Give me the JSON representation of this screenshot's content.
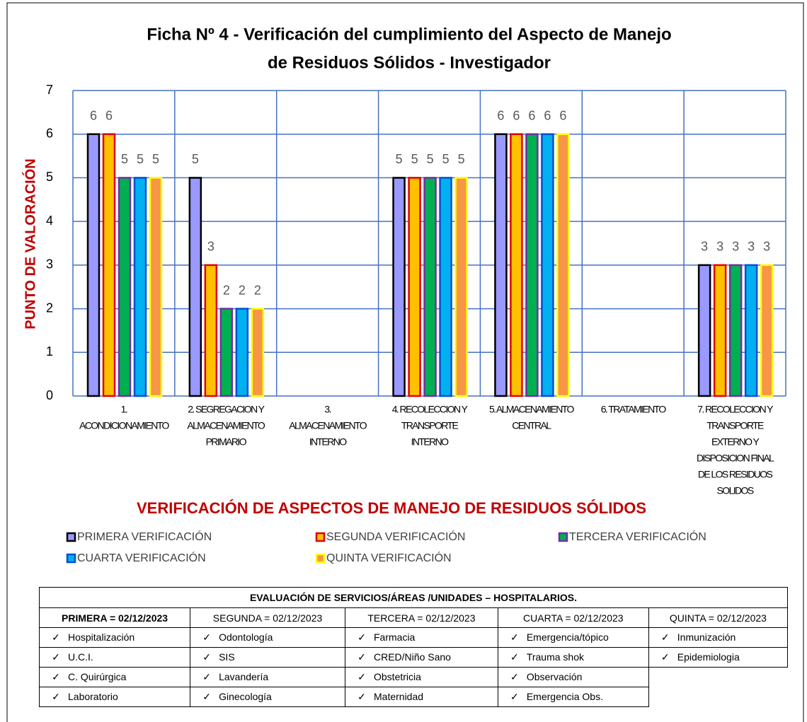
{
  "chart_data": {
    "type": "bar",
    "title": [
      "Ficha Nº 4 - Verificación del cumplimiento del Aspecto de Manejo",
      "de Residuos Sólidos -  Investigador"
    ],
    "y_label": "PUNTO DE VALORACIÓN",
    "x_label": "VERIFICACIÓN DE ASPECTOS DE MANEJO DE RESIDUOS SÓLIDOS",
    "categories": [
      [
        "1.",
        "ACONDICIONAMIENTO"
      ],
      [
        "2. SEGREGACION Y",
        "ALMACENAMIENTO",
        "PRIMARIO"
      ],
      [
        "3.",
        "ALMACENAMIENTO",
        "INTERNO"
      ],
      [
        "4. RECOLECCION Y",
        "TRANSPORTE",
        "INTERNO"
      ],
      [
        "5. ALMACENAMIENTO",
        "CENTRAL"
      ],
      [
        "6. TRATAMIENTO"
      ],
      [
        "7. RECOLECCION Y",
        "TRANSPORTE",
        "EXTERNO Y",
        "DISPOSICION FINAL",
        "DE LOS RESIDUOS",
        "SOLIDOS"
      ]
    ],
    "series": [
      {
        "name": "PRIMERA VERIFICACIÓN",
        "color": "#9999ff",
        "border": "#000000",
        "values": [
          6,
          5,
          null,
          5,
          6,
          null,
          3
        ]
      },
      {
        "name": "SEGUNDA VERIFICACIÓN",
        "color": "#ffc000",
        "border": "#e00000",
        "values": [
          6,
          3,
          null,
          5,
          6,
          null,
          3
        ]
      },
      {
        "name": "TERCERA VERIFICACIÓN",
        "color": "#00b050",
        "border": "#7030a0",
        "values": [
          5,
          2,
          null,
          5,
          6,
          null,
          3
        ]
      },
      {
        "name": "CUARTA VERIFICACIÓN",
        "color": "#00b0f0",
        "border": "#0050d0",
        "values": [
          5,
          2,
          null,
          5,
          6,
          null,
          3
        ]
      },
      {
        "name": "QUINTA VERIFICACIÓN",
        "color": "#f79646",
        "border": "#ffff00",
        "values": [
          5,
          2,
          null,
          5,
          6,
          null,
          3
        ]
      }
    ],
    "ylim": [
      0,
      7
    ],
    "yticks": [
      0,
      1,
      2,
      3,
      4,
      5,
      6,
      7
    ],
    "grid": true
  },
  "table": {
    "title": "EVALUACIÓN DE SERVICIOS/ÁREAS /UNIDADES – HOSPITALARIOS.",
    "columns": [
      {
        "header": "PRIMERA = 02/12/2023",
        "items": [
          "Hospitalización",
          "U.C.I.",
          "C. Quirúrgica",
          "Laboratorio"
        ]
      },
      {
        "header": "SEGUNDA = 02/12/2023",
        "items": [
          "Odontología",
          "SIS",
          "Lavandería",
          "Ginecología"
        ]
      },
      {
        "header": "TERCERA = 02/12/2023",
        "items": [
          "Farmacia",
          "CRED/Niño Sano",
          "Obstetricia",
          "Maternidad"
        ]
      },
      {
        "header": "CUARTA = 02/12/2023",
        "items": [
          "Emergencia/tópico",
          "Trauma shok",
          "Observación",
          "Emergencia Obs."
        ]
      },
      {
        "header": "QUINTA = 02/12/2023",
        "items": [
          "Inmunización",
          "Epidemiologia"
        ]
      }
    ]
  }
}
